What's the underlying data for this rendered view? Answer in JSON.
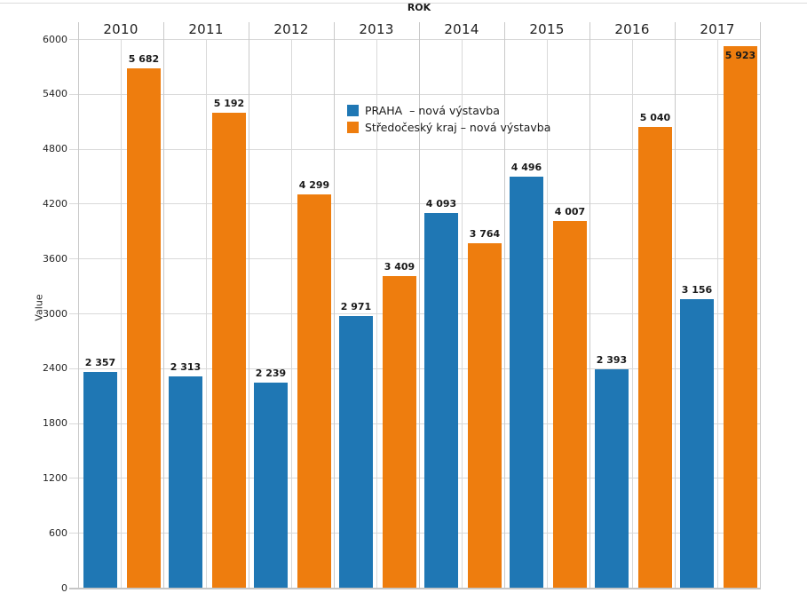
{
  "chart_data": {
    "type": "bar",
    "title": "ROK",
    "title_position": "top-center",
    "xlabel": "ROK",
    "ylabel": "Value",
    "categories": [
      "2010",
      "2011",
      "2012",
      "2013",
      "2014",
      "2015",
      "2016",
      "2017"
    ],
    "series": [
      {
        "name": "PRAHA  – nová výstavba",
        "key": "praha",
        "color": "#1f77b4",
        "values": [
          2357,
          2313,
          2239,
          2971,
          4093,
          4496,
          2393,
          3156
        ],
        "value_labels": [
          "2 357",
          "2 313",
          "2 239",
          "2 971",
          "4 093",
          "4 496",
          "2 393",
          "3 156"
        ]
      },
      {
        "name": "Středočeský kraj – nová výstavba",
        "key": "stredocesky-kraj",
        "color": "#ee7d0e",
        "values": [
          5682,
          5192,
          4299,
          3409,
          3764,
          4007,
          5040,
          5923
        ],
        "value_labels": [
          "5 682",
          "5 192",
          "4 299",
          "3 409",
          "3 764",
          "4 007",
          "5 040",
          "5 923"
        ]
      }
    ],
    "ylim": [
      0,
      6000
    ],
    "ytick_step": 600,
    "yticks": [
      "0",
      "600",
      "1200",
      "1800",
      "2400",
      "3000",
      "3600",
      "4200",
      "4800",
      "5400",
      "6000"
    ],
    "grid": true,
    "gridline_color": "#d9d9d9",
    "axis_color": "#c6c6c6",
    "text_color": "#1a1a1a",
    "legend_position": "inside-top-center",
    "bar_value_labels": true
  }
}
